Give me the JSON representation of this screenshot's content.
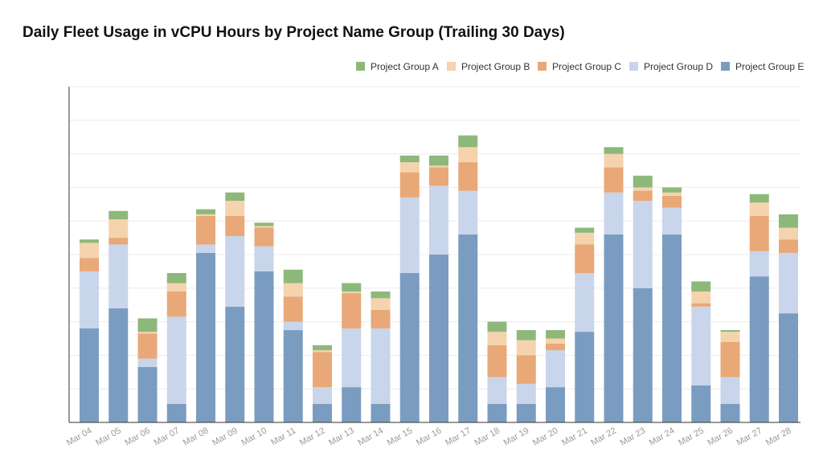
{
  "chart_data": {
    "type": "bar",
    "stacked": true,
    "title": "Daily Fleet Usage in vCPU Hours by Project Name Group (Trailing 30 Days)",
    "xlabel": "",
    "ylabel": "",
    "y_tick_labels_visible": false,
    "ylim": [
      0,
      100
    ],
    "grid": true,
    "legend_position": "top-right",
    "categories": [
      "Mar 04",
      "Mar 05",
      "Mar 06",
      "Mar 07",
      "Mar 08",
      "Mar 09",
      "Mar 10",
      "Mar 11",
      "Mar 12",
      "Mar 13",
      "Mar 14",
      "Mar 15",
      "Mar 16",
      "Mar 17",
      "Mar 18",
      "Mar 19",
      "Mar 20",
      "Mar 21",
      "Mar 22",
      "Mar 23",
      "Mar 24",
      "Mar 25",
      "Mar 26",
      "Mar 27",
      "Mar 28"
    ],
    "series": [
      {
        "name": "Project Group E",
        "color": "#7a9cc1",
        "values": [
          28,
          34,
          16.5,
          5.5,
          50.5,
          34.5,
          45,
          27.5,
          5.5,
          10.5,
          5.5,
          44.5,
          50,
          56,
          5.5,
          5.5,
          10.5,
          27,
          56,
          40,
          56,
          11,
          5.5,
          43.5,
          32.5
        ]
      },
      {
        "name": "Project Group D",
        "color": "#c9d5ea",
        "values": [
          17,
          19,
          2.5,
          26,
          2.5,
          21,
          7.5,
          2.5,
          5,
          17.5,
          22.5,
          22.5,
          20.5,
          13,
          8,
          6,
          11,
          17.5,
          12.5,
          26,
          8,
          23.5,
          8,
          7.5,
          18
        ]
      },
      {
        "name": "Project Group C",
        "color": "#e9a877",
        "values": [
          4,
          2,
          7.5,
          7.5,
          8.5,
          6,
          5.5,
          7.5,
          10.5,
          10.5,
          5.5,
          7.5,
          5.5,
          8.5,
          9.5,
          8.5,
          2,
          8.5,
          7.5,
          3,
          3.5,
          1,
          10.5,
          10.5,
          4
        ]
      },
      {
        "name": "Project Group B",
        "color": "#f4d3ad",
        "values": [
          4.5,
          5.5,
          0.5,
          2.5,
          0.5,
          4.5,
          0.5,
          4,
          0.5,
          0.5,
          3.5,
          3,
          0.5,
          4.5,
          4,
          4.5,
          1.5,
          3.5,
          4,
          1,
          1,
          3.5,
          3,
          4,
          3.5
        ]
      },
      {
        "name": "Project Group A",
        "color": "#8db87a",
        "values": [
          1,
          2.5,
          4,
          3,
          1.5,
          2.5,
          1,
          4,
          1.5,
          2.5,
          2,
          2,
          3,
          3.5,
          3,
          3,
          2.5,
          1.5,
          2,
          3.5,
          1.5,
          3,
          0.5,
          2.5,
          4
        ]
      }
    ],
    "legend_order": [
      "Project Group A",
      "Project Group B",
      "Project Group C",
      "Project Group D",
      "Project Group E"
    ]
  }
}
